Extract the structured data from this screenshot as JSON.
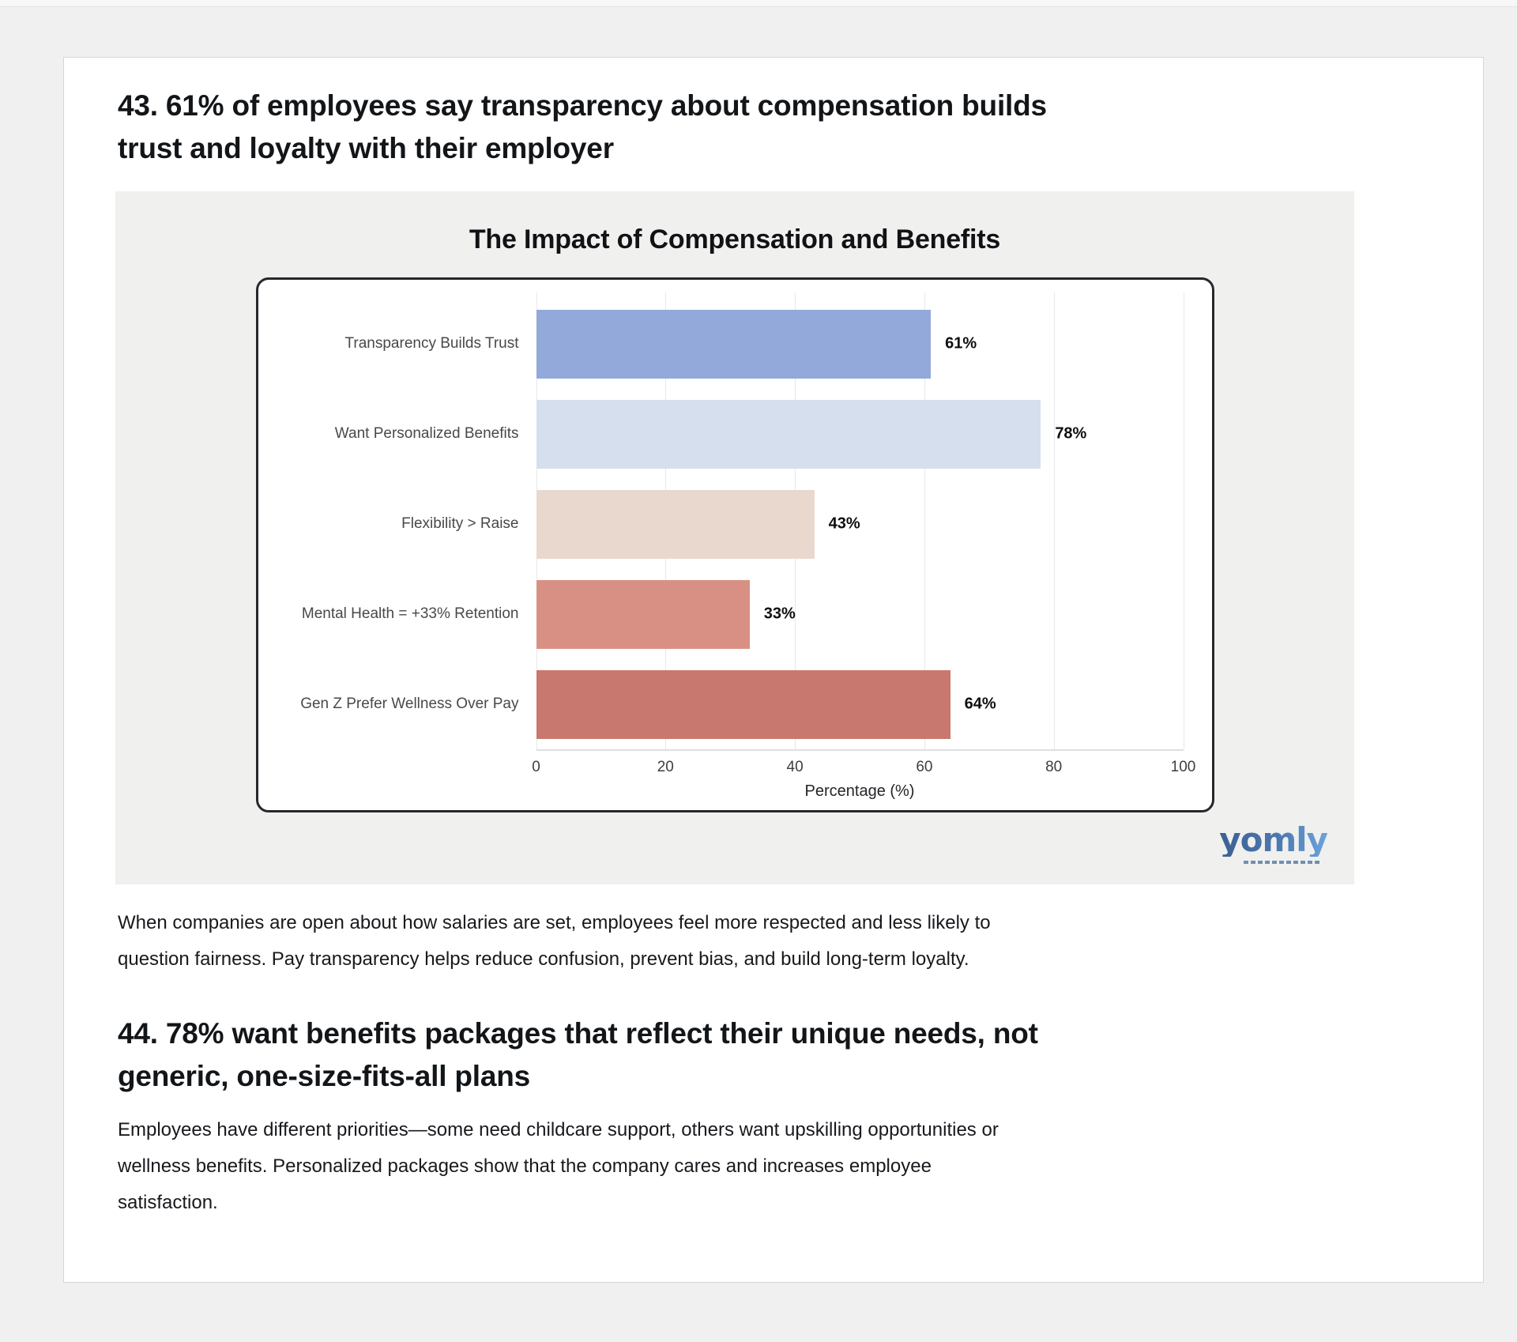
{
  "page": {
    "background": "#f0f0f0",
    "card_background": "#ffffff"
  },
  "section_43": {
    "heading": "43. 61% of employees say transparency about compensation builds\ntrust and loyalty with their employer",
    "body": "When companies are open about how salaries are set, employees feel more respected and less likely to\nquestion fairness. Pay transparency helps reduce confusion, prevent bias, and build long-term loyalty."
  },
  "section_44": {
    "heading": "44. 78% want benefits packages that reflect their unique needs, not\ngeneric, one-size-fits-all plans",
    "body": "Employees have different priorities—some need childcare support, others want upskilling opportunities or\nwellness benefits. Personalized packages show that the company cares and increases employee\nsatisfaction."
  },
  "chart_data": {
    "type": "bar",
    "orientation": "horizontal",
    "title": "The Impact of Compensation and Benefits",
    "categories": [
      "Transparency Builds Trust",
      "Want Personalized Benefits",
      "Flexibility > Raise",
      "Mental Health = +33% Retention",
      "Gen Z Prefer Wellness Over Pay"
    ],
    "values": [
      61,
      78,
      43,
      33,
      64
    ],
    "value_labels": [
      "61%",
      "78%",
      "43%",
      "33%",
      "64%"
    ],
    "bar_colors": [
      "#92a9d9",
      "#d5dfee",
      "#e9d8ce",
      "#d89085",
      "#c8786e"
    ],
    "xlabel": "Percentage (%)",
    "xlim": [
      0,
      100
    ],
    "xticks": [
      0,
      20,
      40,
      60,
      80,
      100
    ],
    "grid": true,
    "legend": false,
    "plot_border_color": "#26282b",
    "figure_background": "#f0f0ef"
  },
  "logo": {
    "text": "yomly",
    "color_start": "#3d5f92",
    "color_end": "#6ba3dc"
  }
}
